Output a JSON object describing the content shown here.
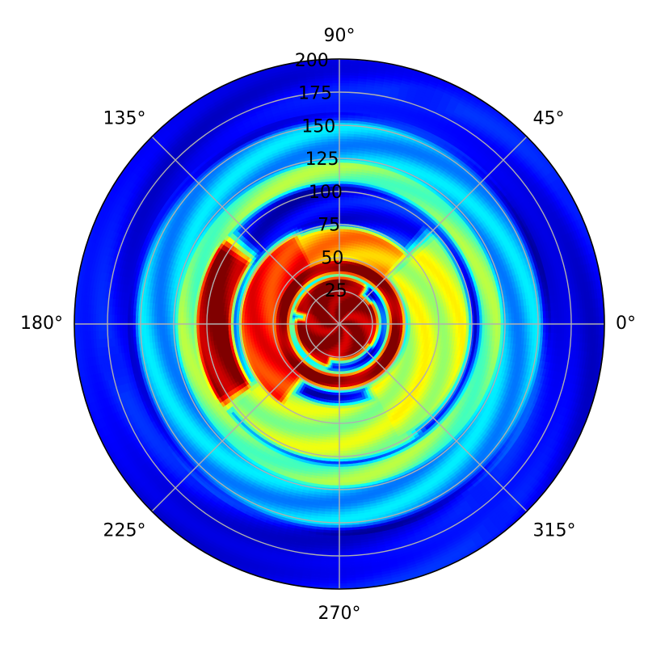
{
  "chart_data": {
    "type": "heatmap",
    "projection": "polar",
    "title": "",
    "colormap": "jet",
    "grid": true,
    "angle_ticks": [
      "0°",
      "45°",
      "90°",
      "135°",
      "180°",
      "225°",
      "270°",
      "315°"
    ],
    "radial_ticks": [
      "25",
      "50",
      "75",
      "100",
      "125",
      "150",
      "175",
      "200"
    ],
    "radial_lim": [
      0,
      200
    ],
    "features": [
      {
        "name": "center core",
        "r": [
          0,
          24
        ],
        "theta": [
          0,
          360
        ],
        "level": 0.97
      },
      {
        "name": "core lobe",
        "r": [
          5,
          32
        ],
        "theta": [
          60,
          160
        ],
        "level": 1.0
      },
      {
        "name": "core lobe",
        "r": [
          5,
          30
        ],
        "theta": [
          180,
          250
        ],
        "level": 0.98
      },
      {
        "name": "core lobe",
        "r": [
          5,
          26
        ],
        "theta": [
          330,
          30
        ],
        "level": 0.95
      },
      {
        "name": "inner ring",
        "r": [
          42,
          46
        ],
        "theta": [
          0,
          360
        ],
        "level": 1.0
      },
      {
        "name": "left arc",
        "r": [
          50,
          72
        ],
        "theta": [
          120,
          230
        ],
        "level": 0.85
      },
      {
        "name": "left crescent",
        "r": [
          85,
          105
        ],
        "theta": [
          150,
          210
        ],
        "level": 0.98
      },
      {
        "name": "upper band",
        "r": [
          52,
          70
        ],
        "theta": [
          50,
          120
        ],
        "level": 0.72
      },
      {
        "name": "right lobe",
        "r": [
          55,
          95
        ],
        "theta": [
          300,
          40
        ],
        "level": 0.58
      },
      {
        "name": "lower band",
        "r": [
          65,
          100
        ],
        "theta": [
          220,
          300
        ],
        "level": 0.55
      },
      {
        "name": "outer ring",
        "r": [
          110,
          120
        ],
        "theta": [
          0,
          360
        ],
        "level": 0.5
      },
      {
        "name": "outer halo",
        "r": [
          125,
          150
        ],
        "theta": [
          0,
          360
        ],
        "level": 0.3
      }
    ]
  }
}
